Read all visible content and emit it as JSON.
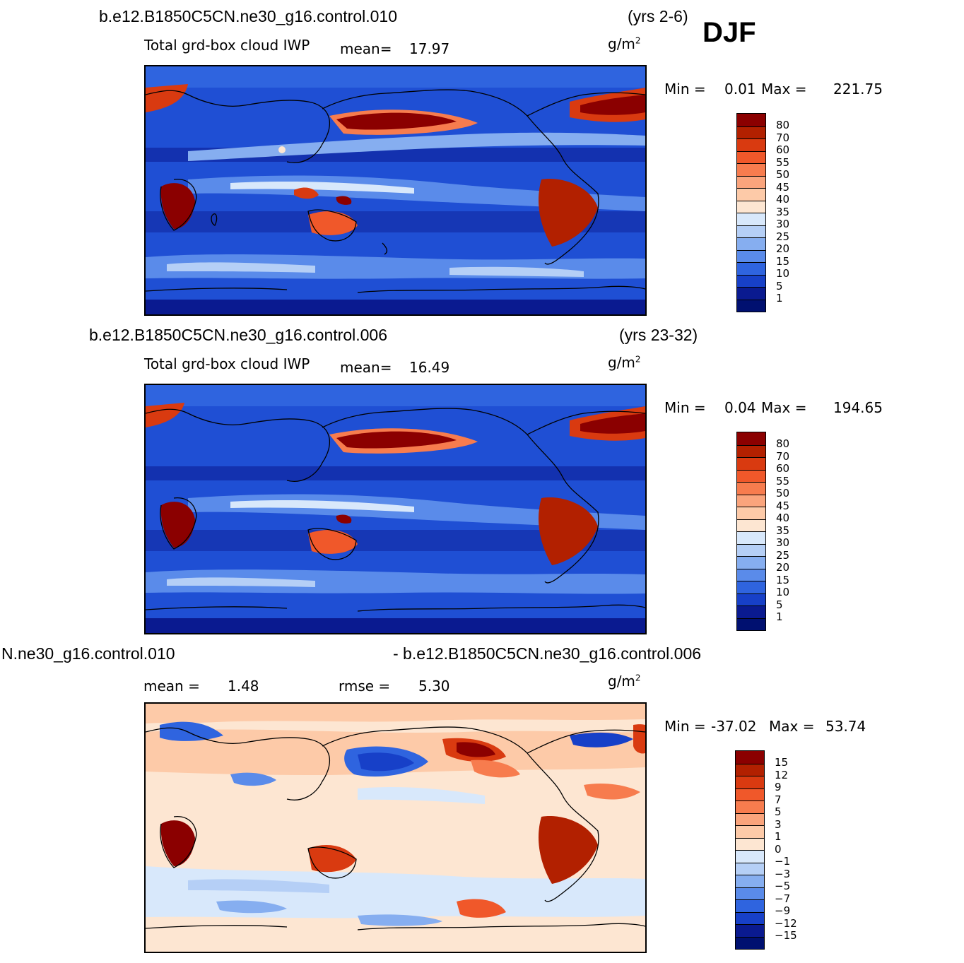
{
  "season": "DJF",
  "units": "g/m",
  "units_sup": "2",
  "panels": [
    {
      "case": "b.e12.B1850C5CN.ne30_g16.control.010",
      "years": "(yrs 2-6)",
      "variable": "Total grd-box cloud IWP",
      "mean_label": "mean=",
      "mean": "17.97",
      "min_label": "Min =",
      "min": "0.01",
      "max_label": "Max =",
      "max": "221.75"
    },
    {
      "case": "b.e12.B1850C5CN.ne30_g16.control.006",
      "years": "(yrs 23-32)",
      "variable": "Total grd-box cloud IWP",
      "mean_label": "mean=",
      "mean": "16.49",
      "min_label": "Min =",
      "min": "0.04",
      "max_label": "Max =",
      "max": "194.65"
    },
    {
      "case_left": "N.ne30_g16.control.010",
      "case_right": "- b.e12.B1850C5CN.ne30_g16.control.006",
      "mean_label": "mean =",
      "mean": "1.48",
      "rmse_label": "rmse =",
      "rmse": "5.30",
      "min_label": "Min =",
      "min": "-37.02",
      "max_label": "Max =",
      "max": "53.74"
    }
  ],
  "colorbar_abs": {
    "labels": [
      "80",
      "70",
      "60",
      "55",
      "50",
      "45",
      "40",
      "35",
      "30",
      "25",
      "20",
      "15",
      "10",
      "5",
      "1"
    ],
    "colors": [
      "#8b0000",
      "#b22000",
      "#d93a10",
      "#f0582a",
      "#f77c4e",
      "#faa47c",
      "#fdcaa8",
      "#fde6d2",
      "#d8e8fb",
      "#b5cff6",
      "#86aef0",
      "#5a8bea",
      "#2f64df",
      "#1740c8",
      "#0a1a90",
      "#001070"
    ]
  },
  "colorbar_diff": {
    "labels": [
      "15",
      "12",
      "9",
      "7",
      "5",
      "3",
      "1",
      "0",
      "−1",
      "−3",
      "−5",
      "−7",
      "−9",
      "−12",
      "−15"
    ],
    "colors": [
      "#8b0000",
      "#b22000",
      "#d93a10",
      "#f0582a",
      "#f77c4e",
      "#faa47c",
      "#fdcaa8",
      "#fde6d2",
      "#d8e8fb",
      "#b5cff6",
      "#86aef0",
      "#5a8bea",
      "#2f64df",
      "#1740c8",
      "#0a1a90",
      "#001070"
    ]
  }
}
